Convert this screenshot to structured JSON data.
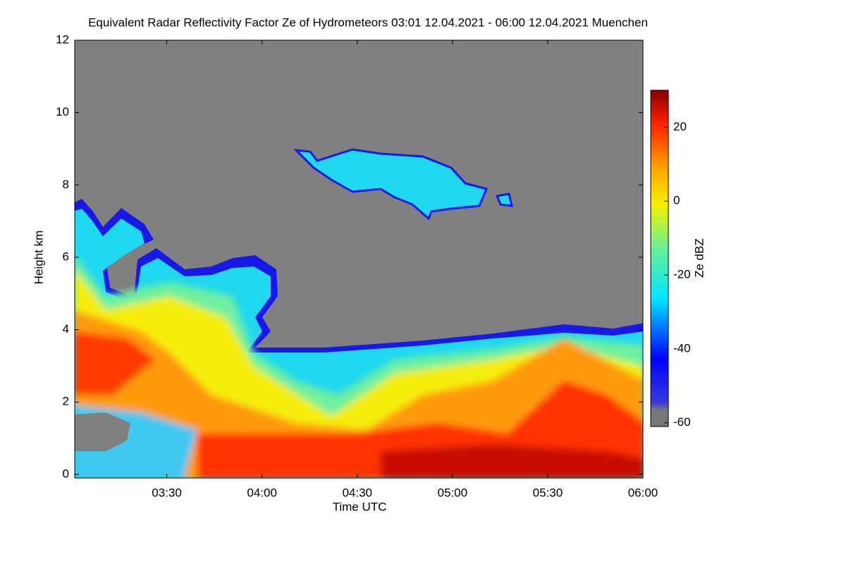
{
  "chart_data": {
    "type": "heatmap",
    "title": "Equivalent Radar Reflectivity Factor Ze of Hydrometeors   03:01 12.04.2021 - 06:00 12.04.2021 Muenchen",
    "x_label": "Time UTC",
    "y_label": "Height km",
    "colorbar_label": "Ze dBZ",
    "xlim": [
      "03:01",
      "06:00"
    ],
    "xticks": [
      "03:30",
      "04:00",
      "04:30",
      "05:00",
      "05:30",
      "06:00"
    ],
    "ylim": [
      -0.1,
      12
    ],
    "yticks": [
      0,
      2,
      4,
      6,
      8,
      10,
      12
    ],
    "clim": [
      -61,
      30
    ],
    "cticks": [
      -60,
      -40,
      -20,
      0,
      20
    ]
  }
}
